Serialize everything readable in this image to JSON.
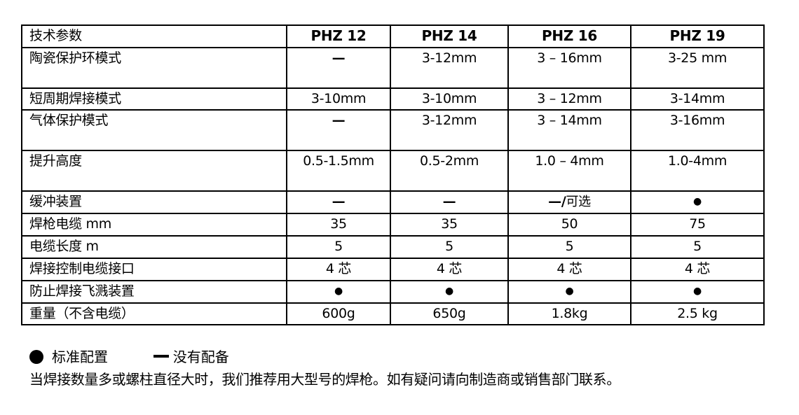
{
  "table": {
    "headers": [
      "技术参数",
      "PHZ 12",
      "PHZ 14",
      "PHZ 16",
      "PHZ 19"
    ],
    "rows": [
      {
        "label": "陶瓷保护环模式",
        "values": [
          "—",
          "3-12mm",
          "3 – 16mm",
          "3-25 mm"
        ]
      },
      {
        "label": "短周期焊接模式",
        "values": [
          "3-10mm",
          "3-10mm",
          "3 – 12mm",
          "3-14mm"
        ]
      },
      {
        "label": "气体保护模式",
        "values": [
          "—",
          "3-12mm",
          "3 – 14mm",
          "3-16mm"
        ]
      },
      {
        "label": "提升高度",
        "values": [
          "0.5-1.5mm",
          "0.5-2mm",
          "1.0 – 4mm",
          "1.0-4mm"
        ]
      },
      {
        "label": "缓冲装置",
        "values": [
          "—",
          "—",
          "—/可选",
          "●"
        ]
      },
      {
        "label": "焊枪电缆 mm",
        "values": [
          "35",
          "35",
          "50",
          "75"
        ]
      },
      {
        "label": "电缆长度 m",
        "values": [
          "5",
          "5",
          "5",
          "5"
        ]
      },
      {
        "label": "焊接控制电缆接口",
        "values": [
          "4 芯",
          "4 芯",
          "4 芯",
          "4 芯"
        ]
      },
      {
        "label": "防止焊接飞溅装置",
        "values": [
          "●",
          "●",
          "●",
          "●"
        ]
      },
      {
        "label": "重量（不含电缆）",
        "values": [
          "600g",
          "650g",
          "1.8kg",
          "2.5 kg"
        ]
      }
    ]
  },
  "legend": {
    "standard": "标准配置",
    "none": "没有配备"
  },
  "note": "当焊接数量多或螺柱直径大时，我们推荐用大型号的焊枪。如有疑问请向制造商或销售部门联系。"
}
